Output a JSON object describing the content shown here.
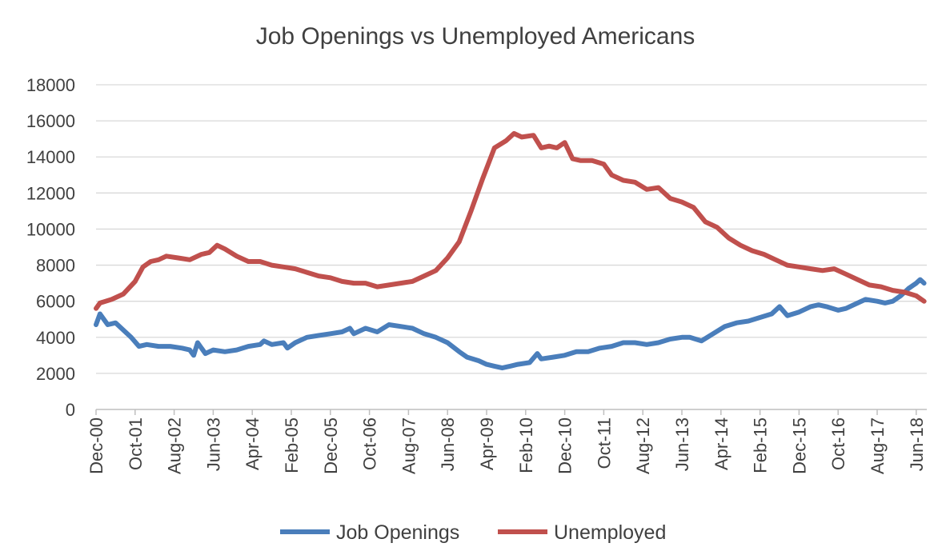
{
  "chart_data": {
    "type": "line",
    "title": "Job Openings vs Unemployed Americans",
    "xlabel": "",
    "ylabel": "",
    "ylim": [
      0,
      18000
    ],
    "yticks": [
      0,
      2000,
      4000,
      6000,
      8000,
      10000,
      12000,
      14000,
      16000,
      18000
    ],
    "grid": true,
    "legend": "bottom",
    "x_start": "2000-12",
    "x_ticks": [
      "Dec-00",
      "Oct-01",
      "Aug-02",
      "Jun-03",
      "Apr-04",
      "Feb-05",
      "Dec-05",
      "Oct-06",
      "Aug-07",
      "Jun-08",
      "Apr-09",
      "Feb-10",
      "Dec-10",
      "Oct-11",
      "Aug-12",
      "Jun-13",
      "Apr-14",
      "Feb-15",
      "Dec-15",
      "Oct-16",
      "Aug-17",
      "Jun-18"
    ],
    "series": [
      {
        "name": "Job Openings",
        "color": "#4a7ebb",
        "points": [
          [
            "2000-12",
            4700
          ],
          [
            "2001-01",
            5300
          ],
          [
            "2001-03",
            4700
          ],
          [
            "2001-05",
            4800
          ],
          [
            "2001-07",
            4400
          ],
          [
            "2001-09",
            4000
          ],
          [
            "2001-11",
            3500
          ],
          [
            "2002-01",
            3600
          ],
          [
            "2002-04",
            3500
          ],
          [
            "2002-07",
            3500
          ],
          [
            "2002-10",
            3400
          ],
          [
            "2002-12",
            3300
          ],
          [
            "2003-01",
            3000
          ],
          [
            "2003-02",
            3700
          ],
          [
            "2003-04",
            3100
          ],
          [
            "2003-06",
            3300
          ],
          [
            "2003-09",
            3200
          ],
          [
            "2003-12",
            3300
          ],
          [
            "2004-03",
            3500
          ],
          [
            "2004-06",
            3600
          ],
          [
            "2004-07",
            3800
          ],
          [
            "2004-09",
            3600
          ],
          [
            "2004-12",
            3700
          ],
          [
            "2005-01",
            3400
          ],
          [
            "2005-03",
            3700
          ],
          [
            "2005-06",
            4000
          ],
          [
            "2005-09",
            4100
          ],
          [
            "2005-12",
            4200
          ],
          [
            "2006-03",
            4300
          ],
          [
            "2006-05",
            4500
          ],
          [
            "2006-06",
            4200
          ],
          [
            "2006-09",
            4500
          ],
          [
            "2006-12",
            4300
          ],
          [
            "2007-03",
            4700
          ],
          [
            "2007-06",
            4600
          ],
          [
            "2007-09",
            4500
          ],
          [
            "2007-12",
            4200
          ],
          [
            "2008-03",
            4000
          ],
          [
            "2008-06",
            3700
          ],
          [
            "2008-09",
            3200
          ],
          [
            "2008-11",
            2900
          ],
          [
            "2009-02",
            2700
          ],
          [
            "2009-04",
            2500
          ],
          [
            "2009-06",
            2400
          ],
          [
            "2009-08",
            2300
          ],
          [
            "2009-10",
            2400
          ],
          [
            "2009-12",
            2500
          ],
          [
            "2010-03",
            2600
          ],
          [
            "2010-05",
            3100
          ],
          [
            "2010-06",
            2800
          ],
          [
            "2010-09",
            2900
          ],
          [
            "2010-12",
            3000
          ],
          [
            "2011-03",
            3200
          ],
          [
            "2011-06",
            3200
          ],
          [
            "2011-09",
            3400
          ],
          [
            "2011-12",
            3500
          ],
          [
            "2012-03",
            3700
          ],
          [
            "2012-06",
            3700
          ],
          [
            "2012-09",
            3600
          ],
          [
            "2012-12",
            3700
          ],
          [
            "2013-03",
            3900
          ],
          [
            "2013-06",
            4000
          ],
          [
            "2013-08",
            4000
          ],
          [
            "2013-11",
            3800
          ],
          [
            "2014-02",
            4200
          ],
          [
            "2014-05",
            4600
          ],
          [
            "2014-08",
            4800
          ],
          [
            "2014-11",
            4900
          ],
          [
            "2015-02",
            5100
          ],
          [
            "2015-05",
            5300
          ],
          [
            "2015-07",
            5700
          ],
          [
            "2015-09",
            5200
          ],
          [
            "2015-12",
            5400
          ],
          [
            "2016-03",
            5700
          ],
          [
            "2016-05",
            5800
          ],
          [
            "2016-07",
            5700
          ],
          [
            "2016-10",
            5500
          ],
          [
            "2016-12",
            5600
          ],
          [
            "2017-03",
            5900
          ],
          [
            "2017-05",
            6100
          ],
          [
            "2017-08",
            6000
          ],
          [
            "2017-10",
            5900
          ],
          [
            "2017-12",
            6000
          ],
          [
            "2018-02",
            6300
          ],
          [
            "2018-04",
            6700
          ],
          [
            "2018-06",
            7000
          ],
          [
            "2018-07",
            7200
          ],
          [
            "2018-08",
            7000
          ]
        ]
      },
      {
        "name": "Unemployed",
        "color": "#c0504d",
        "points": [
          [
            "2000-12",
            5600
          ],
          [
            "2001-01",
            5900
          ],
          [
            "2001-04",
            6100
          ],
          [
            "2001-07",
            6400
          ],
          [
            "2001-10",
            7100
          ],
          [
            "2001-12",
            7900
          ],
          [
            "2002-02",
            8200
          ],
          [
            "2002-04",
            8300
          ],
          [
            "2002-06",
            8500
          ],
          [
            "2002-09",
            8400
          ],
          [
            "2002-12",
            8300
          ],
          [
            "2003-03",
            8600
          ],
          [
            "2003-05",
            8700
          ],
          [
            "2003-07",
            9100
          ],
          [
            "2003-09",
            8900
          ],
          [
            "2003-12",
            8500
          ],
          [
            "2004-03",
            8200
          ],
          [
            "2004-06",
            8200
          ],
          [
            "2004-09",
            8000
          ],
          [
            "2004-12",
            7900
          ],
          [
            "2005-03",
            7800
          ],
          [
            "2005-06",
            7600
          ],
          [
            "2005-09",
            7400
          ],
          [
            "2005-12",
            7300
          ],
          [
            "2006-03",
            7100
          ],
          [
            "2006-06",
            7000
          ],
          [
            "2006-09",
            7000
          ],
          [
            "2006-12",
            6800
          ],
          [
            "2007-03",
            6900
          ],
          [
            "2007-06",
            7000
          ],
          [
            "2007-09",
            7100
          ],
          [
            "2007-12",
            7400
          ],
          [
            "2008-03",
            7700
          ],
          [
            "2008-06",
            8400
          ],
          [
            "2008-09",
            9300
          ],
          [
            "2008-12",
            11000
          ],
          [
            "2009-03",
            12800
          ],
          [
            "2009-06",
            14500
          ],
          [
            "2009-09",
            14900
          ],
          [
            "2009-11",
            15300
          ],
          [
            "2010-01",
            15100
          ],
          [
            "2010-04",
            15200
          ],
          [
            "2010-06",
            14500
          ],
          [
            "2010-08",
            14600
          ],
          [
            "2010-10",
            14500
          ],
          [
            "2010-12",
            14800
          ],
          [
            "2011-02",
            13900
          ],
          [
            "2011-04",
            13800
          ],
          [
            "2011-07",
            13800
          ],
          [
            "2011-10",
            13600
          ],
          [
            "2011-12",
            13000
          ],
          [
            "2012-03",
            12700
          ],
          [
            "2012-06",
            12600
          ],
          [
            "2012-09",
            12200
          ],
          [
            "2012-12",
            12300
          ],
          [
            "2013-03",
            11700
          ],
          [
            "2013-06",
            11500
          ],
          [
            "2013-09",
            11200
          ],
          [
            "2013-12",
            10400
          ],
          [
            "2014-03",
            10100
          ],
          [
            "2014-06",
            9500
          ],
          [
            "2014-09",
            9100
          ],
          [
            "2014-12",
            8800
          ],
          [
            "2015-03",
            8600
          ],
          [
            "2015-06",
            8300
          ],
          [
            "2015-09",
            8000
          ],
          [
            "2015-12",
            7900
          ],
          [
            "2016-03",
            7800
          ],
          [
            "2016-06",
            7700
          ],
          [
            "2016-09",
            7800
          ],
          [
            "2016-12",
            7500
          ],
          [
            "2017-03",
            7200
          ],
          [
            "2017-06",
            6900
          ],
          [
            "2017-09",
            6800
          ],
          [
            "2017-12",
            6600
          ],
          [
            "2018-03",
            6500
          ],
          [
            "2018-06",
            6300
          ],
          [
            "2018-08",
            6000
          ]
        ]
      }
    ]
  }
}
